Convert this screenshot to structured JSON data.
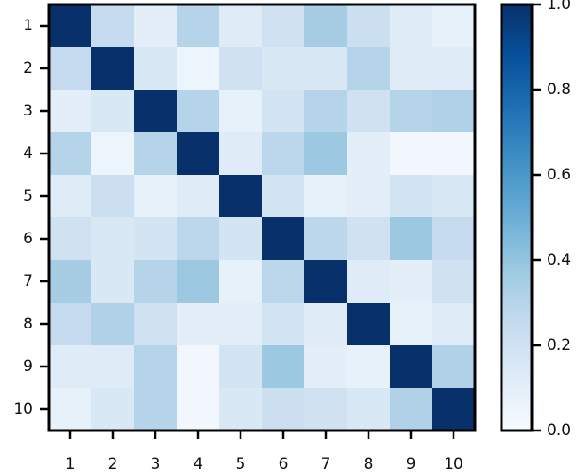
{
  "chart_data": {
    "type": "heatmap",
    "x_categories": [
      "1",
      "2",
      "3",
      "4",
      "5",
      "6",
      "7",
      "8",
      "9",
      "10"
    ],
    "y_categories": [
      "1",
      "2",
      "3",
      "4",
      "5",
      "6",
      "7",
      "8",
      "9",
      "10"
    ],
    "values": [
      [
        1,
        0.25,
        0.1,
        0.3,
        0.12,
        0.2,
        0.35,
        0.22,
        0.12,
        0.08
      ],
      [
        0.25,
        1,
        0.15,
        0.05,
        0.2,
        0.15,
        0.15,
        0.3,
        0.12,
        0.12
      ],
      [
        0.1,
        0.15,
        1,
        0.3,
        0.08,
        0.18,
        0.3,
        0.2,
        0.3,
        0.32
      ],
      [
        0.3,
        0.05,
        0.3,
        1,
        0.12,
        0.28,
        0.38,
        0.1,
        0.03,
        0.03
      ],
      [
        0.12,
        0.22,
        0.08,
        0.12,
        1,
        0.18,
        0.08,
        0.1,
        0.18,
        0.15
      ],
      [
        0.2,
        0.15,
        0.18,
        0.28,
        0.18,
        1,
        0.28,
        0.2,
        0.38,
        0.25
      ],
      [
        0.35,
        0.15,
        0.3,
        0.38,
        0.08,
        0.28,
        1,
        0.12,
        0.1,
        0.2
      ],
      [
        0.25,
        0.32,
        0.2,
        0.1,
        0.1,
        0.18,
        0.12,
        1,
        0.08,
        0.12
      ],
      [
        0.12,
        0.12,
        0.3,
        0.03,
        0.18,
        0.38,
        0.1,
        0.08,
        1,
        0.32
      ],
      [
        0.08,
        0.15,
        0.3,
        0.03,
        0.15,
        0.22,
        0.2,
        0.15,
        0.32,
        1
      ]
    ],
    "colormap": [
      "#f7fbff",
      "#deebf7",
      "#c6dbef",
      "#9ecae1",
      "#6baed6",
      "#4292c6",
      "#2171b5",
      "#08519c",
      "#08306b"
    ],
    "clim": [
      0,
      1
    ],
    "cticks": [
      {
        "value": 0,
        "label": "0.0"
      },
      0.2,
      0.4,
      0.6,
      0.8,
      {
        "value": 1,
        "label": "1.0"
      }
    ]
  }
}
